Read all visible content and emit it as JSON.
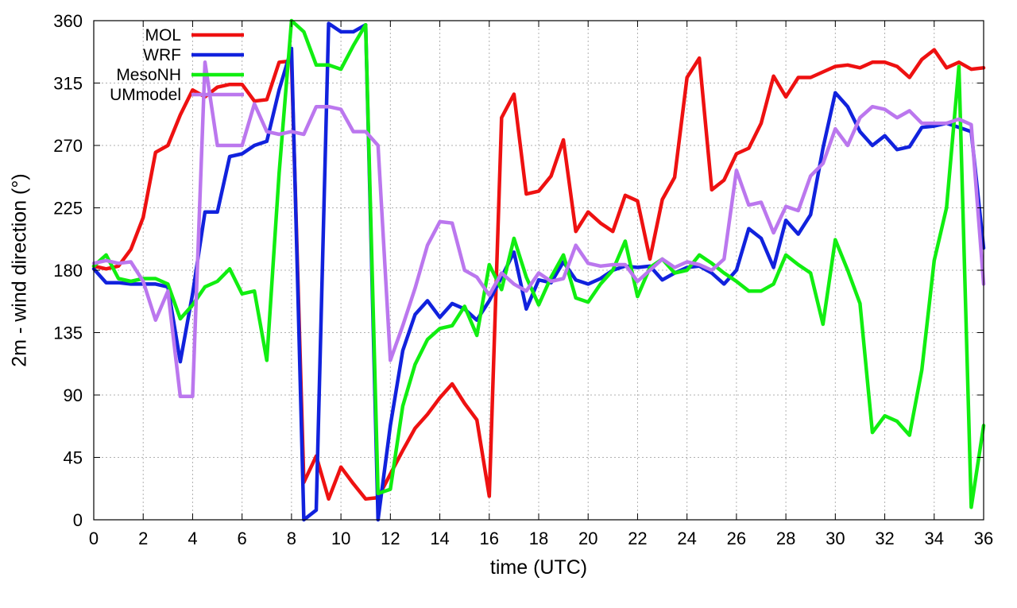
{
  "chart_data": {
    "type": "line",
    "title": "",
    "xlabel": "time (UTC)",
    "ylabel": "2m - wind direction (°)",
    "xlim": [
      0,
      36
    ],
    "ylim": [
      0,
      360
    ],
    "xticks": [
      0,
      2,
      4,
      6,
      8,
      10,
      12,
      14,
      16,
      18,
      20,
      22,
      24,
      26,
      28,
      30,
      32,
      34,
      36
    ],
    "yticks": [
      0,
      45,
      90,
      135,
      180,
      225,
      270,
      315,
      360
    ],
    "grid": true,
    "legend": "top-left",
    "series": [
      {
        "name": "MOL",
        "color": "#ee1111",
        "x": [
          0,
          0.5,
          1,
          1.5,
          2,
          2.5,
          3,
          3.5,
          4,
          4.5,
          5,
          5.5,
          6,
          6.5,
          7,
          7.5,
          8,
          8.5,
          9,
          9.5,
          10,
          10.5,
          11,
          11.5,
          12,
          12.5,
          13,
          13.5,
          14,
          14.5,
          15,
          15.5,
          16,
          16.5,
          17,
          17.5,
          18,
          18.5,
          19,
          19.5,
          20,
          20.5,
          21,
          21.5,
          22,
          22.5,
          23,
          23.5,
          24,
          24.5,
          25,
          25.5,
          26,
          26.5,
          27,
          27.5,
          28,
          28.5,
          29,
          29.5,
          30,
          30.5,
          31,
          31.5,
          32,
          32.5,
          33,
          33.5,
          34,
          34.5,
          35,
          35.5,
          36
        ],
        "y": [
          183,
          181,
          183,
          195,
          218,
          265,
          270,
          292,
          310,
          305,
          312,
          314,
          314,
          302,
          303,
          330,
          331,
          27,
          46,
          15,
          38,
          26,
          15,
          16,
          33,
          50,
          66,
          76,
          88,
          98,
          84,
          72,
          17,
          290,
          307,
          235,
          237,
          248,
          274,
          208,
          222,
          214,
          208,
          234,
          230,
          188,
          231,
          247,
          319,
          333,
          238,
          245,
          264,
          268,
          286,
          320,
          305,
          319,
          319,
          323,
          327,
          328,
          326,
          330,
          330,
          327,
          319,
          332,
          339,
          326,
          330,
          325,
          326
        ]
      },
      {
        "name": "WRF",
        "color": "#1122dd",
        "x": [
          0,
          0.5,
          1,
          1.5,
          2,
          2.5,
          3,
          3.5,
          4,
          4.5,
          5,
          5.5,
          6,
          6.5,
          7,
          7.5,
          8,
          8.5,
          9,
          9.5,
          10,
          10.5,
          11,
          11.5,
          12,
          12.5,
          13,
          13.5,
          14,
          14.5,
          15,
          15.5,
          16,
          16.5,
          17,
          17.5,
          18,
          18.5,
          19,
          19.5,
          20,
          20.5,
          21,
          21.5,
          22,
          22.5,
          23,
          23.5,
          24,
          24.5,
          25,
          25.5,
          26,
          26.5,
          27,
          27.5,
          28,
          28.5,
          29,
          29.5,
          30,
          30.5,
          31,
          31.5,
          32,
          32.5,
          33,
          33.5,
          34,
          34.5,
          35,
          35.5,
          36
        ],
        "y": [
          181,
          171,
          171,
          170,
          170,
          170,
          168,
          114,
          163,
          222,
          222,
          262,
          264,
          270,
          273,
          310,
          340,
          0,
          7,
          358,
          352,
          352,
          357,
          0,
          68,
          122,
          148,
          158,
          146,
          156,
          152,
          144,
          158,
          175,
          193,
          152,
          173,
          171,
          186,
          173,
          170,
          174,
          180,
          183,
          182,
          183,
          173,
          178,
          182,
          183,
          178,
          170,
          180,
          210,
          203,
          182,
          216,
          206,
          220,
          268,
          308,
          298,
          280,
          270,
          277,
          267,
          269,
          283,
          284,
          286,
          283,
          280,
          196
        ]
      },
      {
        "name": "MesoNH",
        "color": "#11ee11",
        "x": [
          0,
          0.5,
          1,
          1.5,
          2,
          2.5,
          3,
          3.5,
          4,
          4.5,
          5,
          5.5,
          6,
          6.5,
          7,
          7.5,
          8,
          8.5,
          9,
          9.5,
          10,
          10.5,
          11,
          11.5,
          12,
          12.5,
          13,
          13.5,
          14,
          14.5,
          15,
          15.5,
          16,
          16.5,
          17,
          17.5,
          18,
          18.5,
          19,
          19.5,
          20,
          20.5,
          21,
          21.5,
          22,
          22.5,
          23,
          23.5,
          24,
          24.5,
          25,
          25.5,
          26,
          26.5,
          27,
          27.5,
          28,
          28.5,
          29,
          29.5,
          30,
          30.5,
          31,
          31.5,
          32,
          32.5,
          33,
          33.5,
          34,
          34.5,
          35,
          35.5,
          36
        ],
        "y": [
          183,
          191,
          174,
          172,
          174,
          174,
          170,
          145,
          155,
          168,
          172,
          181,
          163,
          165,
          115,
          250,
          360,
          352,
          328,
          328,
          325,
          342,
          357,
          19,
          22,
          82,
          112,
          130,
          138,
          140,
          154,
          133,
          184,
          166,
          203,
          175,
          155,
          175,
          191,
          160,
          157,
          170,
          180,
          201,
          161,
          182,
          188,
          178,
          180,
          191,
          185,
          178,
          172,
          165,
          165,
          170,
          191,
          184,
          178,
          141,
          202,
          180,
          156,
          63,
          75,
          71,
          61,
          108,
          187,
          225,
          327,
          9,
          68
        ]
      },
      {
        "name": "UMmodel",
        "color": "#bb77ee",
        "x": [
          0,
          0.5,
          1,
          1.5,
          2,
          2.5,
          3,
          3.5,
          4,
          4.5,
          5,
          5.5,
          6,
          6.5,
          7,
          7.5,
          8,
          8.5,
          9,
          9.5,
          10,
          10.5,
          11,
          11.5,
          12,
          12.5,
          13,
          13.5,
          14,
          14.5,
          15,
          15.5,
          16,
          16.5,
          17,
          17.5,
          18,
          18.5,
          19,
          19.5,
          20,
          20.5,
          21,
          21.5,
          22,
          22.5,
          23,
          23.5,
          24,
          24.5,
          25,
          25.5,
          26,
          26.5,
          27,
          27.5,
          28,
          28.5,
          29,
          29.5,
          30,
          30.5,
          31,
          31.5,
          32,
          32.5,
          33,
          33.5,
          34,
          34.5,
          35,
          35.5,
          36
        ],
        "y": [
          185,
          187,
          185,
          186,
          172,
          144,
          165,
          89,
          89,
          330,
          270,
          270,
          270,
          300,
          280,
          278,
          280,
          278,
          298,
          298,
          296,
          280,
          280,
          270,
          115,
          140,
          167,
          198,
          215,
          214,
          180,
          175,
          162,
          178,
          170,
          165,
          178,
          172,
          174,
          198,
          185,
          183,
          184,
          184,
          172,
          180,
          188,
          182,
          186,
          184,
          180,
          188,
          252,
          227,
          229,
          207,
          226,
          223,
          248,
          257,
          282,
          270,
          290,
          298,
          296,
          290,
          295,
          286,
          286,
          286,
          289,
          285,
          170
        ]
      }
    ]
  }
}
